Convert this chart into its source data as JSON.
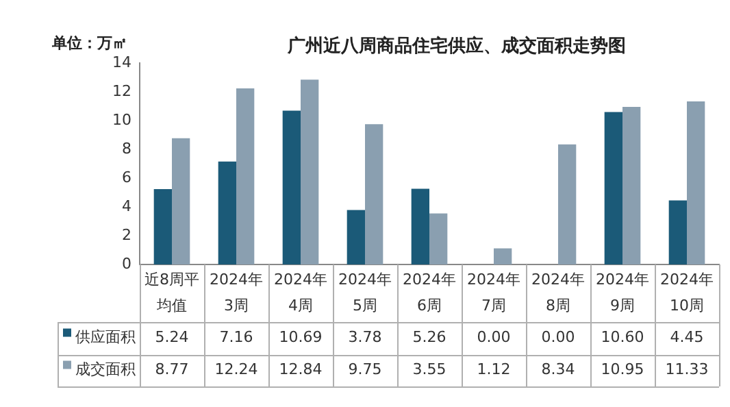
{
  "chart_data": {
    "type": "bar",
    "title": "广州近八周商品住宅供应、成交面积走势图",
    "ylabel": "单位：万㎡",
    "categories": [
      "近8周平均值",
      "2024年3周",
      "2024年4周",
      "2024年5周",
      "2024年6周",
      "2024年7周",
      "2024年8周",
      "2024年9周",
      "2024年10周"
    ],
    "series": [
      {
        "name": "供应面积",
        "color": "#1b5a78",
        "values": [
          5.24,
          7.16,
          10.69,
          3.78,
          5.26,
          0,
          0,
          10.6,
          4.45
        ],
        "value_labels": [
          "5.24",
          "7.16",
          "10.69",
          "3.78",
          "5.26",
          "0.00",
          "0.00",
          "10.60",
          "4.45"
        ]
      },
      {
        "name": "成交面积",
        "color": "#8a9fb0",
        "values": [
          8.77,
          12.24,
          12.84,
          9.75,
          3.55,
          1.12,
          8.34,
          10.95,
          11.33
        ],
        "value_labels": [
          "8.77",
          "12.24",
          "12.84",
          "9.75",
          "3.55",
          "1.12",
          "8.34",
          "10.95",
          "11.33"
        ]
      }
    ],
    "ylim": [
      0,
      14
    ],
    "yticks": [
      0,
      2,
      4,
      6,
      8,
      10,
      12,
      14
    ],
    "grid": false,
    "legend": "bottom"
  }
}
